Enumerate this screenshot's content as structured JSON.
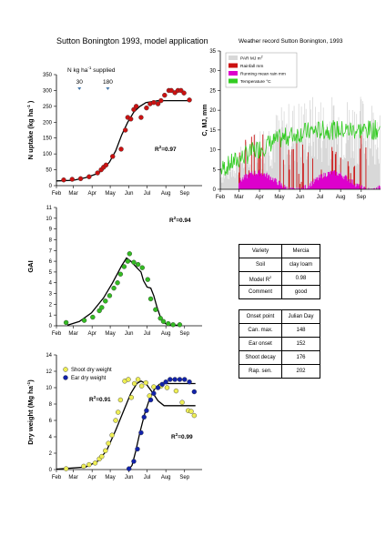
{
  "header": {
    "title": "Sutton Bonington 1993, model application",
    "weather_title": "Weather record Sutton Bonington, 1993"
  },
  "months": [
    "Feb",
    "Mar",
    "Apr",
    "May",
    "Jun",
    "Jul",
    "Aug",
    "Sep"
  ],
  "info_table": [
    {
      "label": "Variety",
      "value": "Mercia"
    },
    {
      "label": "Soil",
      "value": "clay loam"
    },
    {
      "label": "Model R",
      "sup": "2",
      "value": "0.98"
    },
    {
      "label": "Comment",
      "value": "good"
    }
  ],
  "onset_table": {
    "header": [
      "Onset point",
      "Julian Day"
    ],
    "rows": [
      [
        "Can. max.",
        "148"
      ],
      [
        "Ear onset",
        "152"
      ],
      [
        "Shoot decay",
        "176"
      ],
      [
        "Rap. sen.",
        "202"
      ]
    ]
  },
  "chart_data": [
    {
      "type": "scatter",
      "id": "n_uptake",
      "ylabel": "N uptake (kg ha",
      "ylabel_sup": "-1",
      "ylabel_end": " )",
      "xlim": [
        32,
        273
      ],
      "ylim": [
        0,
        350
      ],
      "yticks": [
        0,
        50,
        100,
        150,
        200,
        250,
        300,
        350
      ],
      "r2_label": "R",
      "r2_sup": "2",
      "r2_value": "=0.97",
      "annotation": {
        "text": "N kg ha",
        "sup": "-1",
        "text_end": " supplied"
      },
      "applications": [
        {
          "x": 70,
          "label": "30"
        },
        {
          "x": 117,
          "label": "180"
        }
      ],
      "points": [
        {
          "x": 44,
          "y": 18
        },
        {
          "x": 58,
          "y": 20
        },
        {
          "x": 72,
          "y": 22
        },
        {
          "x": 86,
          "y": 28
        },
        {
          "x": 100,
          "y": 40
        },
        {
          "x": 106,
          "y": 50
        },
        {
          "x": 110,
          "y": 58
        },
        {
          "x": 114,
          "y": 65
        },
        {
          "x": 125,
          "y": 92
        },
        {
          "x": 139,
          "y": 115
        },
        {
          "x": 146,
          "y": 175
        },
        {
          "x": 150,
          "y": 215
        },
        {
          "x": 155,
          "y": 210
        },
        {
          "x": 160,
          "y": 240
        },
        {
          "x": 164,
          "y": 250
        },
        {
          "x": 172,
          "y": 215
        },
        {
          "x": 181,
          "y": 245
        },
        {
          "x": 187,
          "y": 258
        },
        {
          "x": 193,
          "y": 262
        },
        {
          "x": 200,
          "y": 258
        },
        {
          "x": 205,
          "y": 268
        },
        {
          "x": 211,
          "y": 285
        },
        {
          "x": 218,
          "y": 300
        },
        {
          "x": 222,
          "y": 300
        },
        {
          "x": 228,
          "y": 293
        },
        {
          "x": 233,
          "y": 300
        },
        {
          "x": 238,
          "y": 300
        },
        {
          "x": 243,
          "y": 292
        },
        {
          "x": 252,
          "y": 270
        }
      ],
      "curve": [
        [
          32,
          15
        ],
        [
          60,
          17
        ],
        [
          80,
          25
        ],
        [
          100,
          38
        ],
        [
          110,
          52
        ],
        [
          120,
          75
        ],
        [
          130,
          110
        ],
        [
          140,
          160
        ],
        [
          150,
          200
        ],
        [
          160,
          232
        ],
        [
          170,
          250
        ],
        [
          180,
          262
        ],
        [
          200,
          268
        ],
        [
          230,
          268
        ],
        [
          252,
          268
        ]
      ],
      "point_color": "#cc1111"
    },
    {
      "type": "scatter",
      "id": "gai",
      "ylabel": "GAI",
      "xlim": [
        32,
        273
      ],
      "ylim": [
        0,
        11
      ],
      "yticks": [
        0,
        1,
        2,
        3,
        4,
        5,
        6,
        7,
        8,
        9,
        10,
        11
      ],
      "r2_label": "R",
      "r2_sup": "2",
      "r2_value": "=0.94",
      "points": [
        {
          "x": 48,
          "y": 0.3
        },
        {
          "x": 78,
          "y": 0.5
        },
        {
          "x": 92,
          "y": 0.8
        },
        {
          "x": 103,
          "y": 1.4
        },
        {
          "x": 107,
          "y": 1.7
        },
        {
          "x": 113,
          "y": 2.3
        },
        {
          "x": 120,
          "y": 2.8
        },
        {
          "x": 127,
          "y": 3.5
        },
        {
          "x": 133,
          "y": 4.0
        },
        {
          "x": 138,
          "y": 4.8
        },
        {
          "x": 144,
          "y": 5.5
        },
        {
          "x": 150,
          "y": 6.0
        },
        {
          "x": 153,
          "y": 6.7
        },
        {
          "x": 160,
          "y": 5.9
        },
        {
          "x": 167,
          "y": 5.7
        },
        {
          "x": 174,
          "y": 5.4
        },
        {
          "x": 183,
          "y": 4.3
        },
        {
          "x": 188,
          "y": 2.5
        },
        {
          "x": 196,
          "y": 1.5
        },
        {
          "x": 204,
          "y": 0.7
        },
        {
          "x": 209,
          "y": 0.4
        },
        {
          "x": 217,
          "y": 0.2
        },
        {
          "x": 225,
          "y": 0.1
        },
        {
          "x": 236,
          "y": 0.1
        }
      ],
      "curve": [
        [
          50,
          0.05
        ],
        [
          70,
          0.4
        ],
        [
          90,
          1.2
        ],
        [
          110,
          2.6
        ],
        [
          125,
          4.0
        ],
        [
          140,
          5.6
        ],
        [
          148,
          6.3
        ],
        [
          155,
          6.0
        ],
        [
          165,
          5.4
        ],
        [
          172,
          5.0
        ],
        [
          176,
          4.2
        ],
        [
          182,
          3.6
        ],
        [
          188,
          3.5
        ],
        [
          193,
          2.8
        ],
        [
          198,
          1.8
        ],
        [
          204,
          0.8
        ],
        [
          210,
          0.3
        ],
        [
          216,
          0.08
        ],
        [
          236,
          0.05
        ]
      ],
      "point_color": "#33bb22"
    },
    {
      "type": "scatter",
      "id": "dry_weight",
      "ylabel": "Dry weight (Mg ha",
      "ylabel_sup": "-1",
      "ylabel_end": ")",
      "xlim": [
        32,
        273
      ],
      "ylim": [
        0,
        14
      ],
      "yticks": [
        0,
        2,
        4,
        6,
        8,
        10,
        12,
        14
      ],
      "legend": [
        "Shoot dry weight",
        "Ear dry weight"
      ],
      "shoot": {
        "r2_label": "R",
        "r2_sup": "2",
        "r2_value": "=0.91",
        "color": "#eeee55",
        "points": [
          {
            "x": 48,
            "y": 0.1
          },
          {
            "x": 77,
            "y": 0.4
          },
          {
            "x": 86,
            "y": 0.6
          },
          {
            "x": 96,
            "y": 0.8
          },
          {
            "x": 103,
            "y": 1.3
          },
          {
            "x": 107,
            "y": 1.6
          },
          {
            "x": 113,
            "y": 2.3
          },
          {
            "x": 118,
            "y": 3.2
          },
          {
            "x": 124,
            "y": 4.2
          },
          {
            "x": 130,
            "y": 6.0
          },
          {
            "x": 134,
            "y": 7.0
          },
          {
            "x": 138,
            "y": 8.5
          },
          {
            "x": 145,
            "y": 10.8
          },
          {
            "x": 151,
            "y": 11.0
          },
          {
            "x": 156,
            "y": 8.8
          },
          {
            "x": 161,
            "y": 10.5
          },
          {
            "x": 167,
            "y": 11.0
          },
          {
            "x": 173,
            "y": 10.2
          },
          {
            "x": 180,
            "y": 10.6
          },
          {
            "x": 186,
            "y": 9.0
          },
          {
            "x": 193,
            "y": 10.1
          },
          {
            "x": 205,
            "y": 10.2
          },
          {
            "x": 215,
            "y": 10.0
          },
          {
            "x": 230,
            "y": 9.6
          },
          {
            "x": 240,
            "y": 8.2
          },
          {
            "x": 250,
            "y": 7.2
          },
          {
            "x": 255,
            "y": 7.1
          },
          {
            "x": 260,
            "y": 6.6
          }
        ],
        "curve": [
          [
            32,
            0.05
          ],
          [
            80,
            0.3
          ],
          [
            100,
            1.0
          ],
          [
            115,
            2.3
          ],
          [
            130,
            4.8
          ],
          [
            145,
            7.5
          ],
          [
            155,
            9.3
          ],
          [
            165,
            10.5
          ],
          [
            172,
            10.8
          ],
          [
            180,
            10.5
          ],
          [
            190,
            9.5
          ],
          [
            200,
            8.4
          ],
          [
            210,
            7.8
          ],
          [
            262,
            7.8
          ]
        ]
      },
      "ear": {
        "r2_label": "R",
        "r2_sup": "2",
        "r2_value": "=0.99",
        "color": "#1122aa",
        "points": [
          {
            "x": 152,
            "y": 0.1
          },
          {
            "x": 160,
            "y": 1.0
          },
          {
            "x": 166,
            "y": 2.5
          },
          {
            "x": 172,
            "y": 4.5
          },
          {
            "x": 177,
            "y": 6.4
          },
          {
            "x": 181,
            "y": 7.2
          },
          {
            "x": 188,
            "y": 8.5
          },
          {
            "x": 193,
            "y": 9.3
          },
          {
            "x": 200,
            "y": 10.0
          },
          {
            "x": 207,
            "y": 10.4
          },
          {
            "x": 213,
            "y": 10.7
          },
          {
            "x": 220,
            "y": 11.0
          },
          {
            "x": 228,
            "y": 11.0
          },
          {
            "x": 236,
            "y": 11.0
          },
          {
            "x": 244,
            "y": 11.0
          },
          {
            "x": 252,
            "y": 10.7
          },
          {
            "x": 260,
            "y": 9.5
          }
        ],
        "curve": [
          [
            152,
            0.05
          ],
          [
            157,
            0.5
          ],
          [
            163,
            2.2
          ],
          [
            170,
            4.5
          ],
          [
            178,
            6.8
          ],
          [
            186,
            8.6
          ],
          [
            194,
            9.8
          ],
          [
            202,
            10.4
          ],
          [
            210,
            10.5
          ],
          [
            262,
            10.5
          ]
        ]
      }
    },
    {
      "type": "area",
      "id": "weather",
      "title": "Weather record Sutton Bonington, 1993",
      "ylabel": "C, MJ, mm",
      "xlim": [
        32,
        273
      ],
      "ylim": [
        0,
        35
      ],
      "yticks": [
        0,
        5,
        10,
        15,
        20,
        25,
        30,
        35
      ],
      "legend": [
        {
          "label": "PAR MJ m",
          "sup": "2",
          "color": "#d8d8d8"
        },
        {
          "label": "Rainfall mm",
          "color": "#cc1111"
        },
        {
          "label": "Running mean rain mm",
          "color": "#dd00cc"
        },
        {
          "label": "Temperature °C",
          "color": "#33cc22"
        }
      ]
    }
  ]
}
